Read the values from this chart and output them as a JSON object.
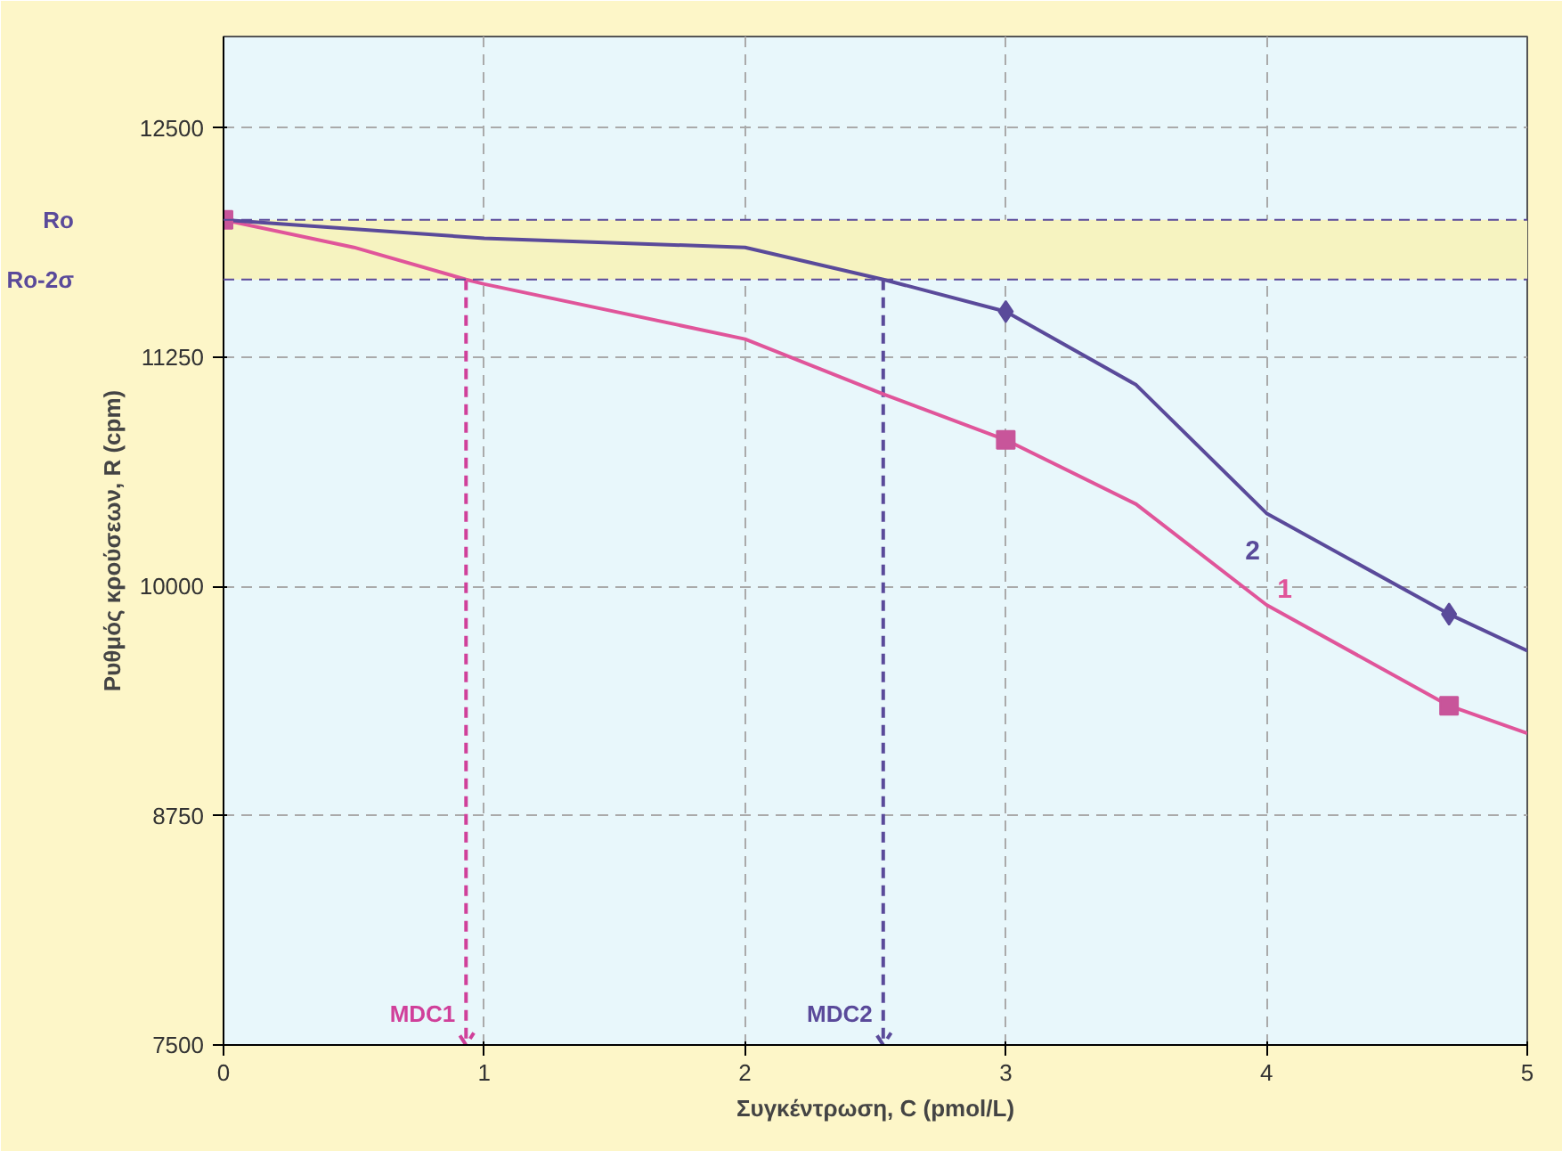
{
  "chart_data": {
    "type": "line",
    "xlabel": "Συγκέντρωση, C (pmol/L)",
    "ylabel": "Ρυθμός κρούσεων, R (cpm)",
    "xlim": [
      0,
      5
    ],
    "ylim": [
      7500,
      13000
    ],
    "xticks": [
      0,
      1,
      2,
      3,
      4,
      5
    ],
    "yticks": [
      7500,
      8750,
      10000,
      11250,
      12500
    ],
    "grid": true,
    "line_style": "solid",
    "series": [
      {
        "name": "1",
        "color": "#e0559a",
        "x": [
          0,
          0.5,
          0.93,
          1,
          2,
          2.53,
          3,
          3.5,
          4,
          4.7,
          5
        ],
        "values": [
          12000,
          11850,
          11675,
          11650,
          11350,
          11050,
          10800,
          10450,
          9900,
          9350,
          9200
        ]
      },
      {
        "name": "2",
        "color": "#5a4a9a",
        "x": [
          0,
          1,
          2,
          2.53,
          3,
          3.5,
          4,
          4.7,
          5
        ],
        "values": [
          12000,
          11900,
          11850,
          11675,
          11500,
          11100,
          10400,
          9850,
          9650
        ]
      },
      {
        "type": "scatter",
        "marker": "square",
        "color": "#c8559a",
        "x": [
          0,
          3,
          4.7
        ],
        "values": [
          12000,
          10800,
          9350
        ]
      },
      {
        "type": "scatter",
        "marker": "diamond",
        "color": "#5a4a9a",
        "x": [
          3,
          4.7
        ],
        "values": [
          11500,
          9850
        ]
      }
    ],
    "ref_lines": [
      {
        "axis": "y",
        "value": 12000,
        "label": "Ro",
        "color": "#5a4a9a",
        "line_style": "dashed"
      },
      {
        "axis": "y",
        "value": 11675,
        "label": "Ro-2σ",
        "color": "#5a4a9a",
        "line_style": "dashed"
      },
      {
        "axis": "x",
        "value": 0.93,
        "label": "MDC1",
        "color": "#d0409a",
        "line_style": "dashed"
      },
      {
        "axis": "x",
        "value": 2.53,
        "label": "MDC2",
        "color": "#5a4a9a",
        "line_style": "dashed"
      }
    ],
    "bands": [
      {
        "axis": "y",
        "from": 11675,
        "to": 12000,
        "color": "#f6f3c0"
      }
    ]
  }
}
